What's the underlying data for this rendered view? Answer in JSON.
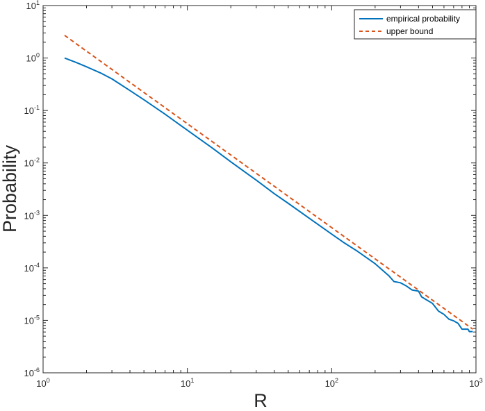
{
  "chart_data": {
    "type": "line",
    "xlabel": "R",
    "ylabel": "Probability",
    "xscale": "log",
    "yscale": "log",
    "xlim": [
      1,
      1000
    ],
    "ylim": [
      1e-06,
      10
    ],
    "x_ticks": [
      {
        "base": "10",
        "exp": "0"
      },
      {
        "base": "10",
        "exp": "1"
      },
      {
        "base": "10",
        "exp": "2"
      },
      {
        "base": "10",
        "exp": "3"
      }
    ],
    "y_ticks": [
      {
        "base": "10",
        "exp": "-6"
      },
      {
        "base": "10",
        "exp": "-5"
      },
      {
        "base": "10",
        "exp": "-4"
      },
      {
        "base": "10",
        "exp": "-3"
      },
      {
        "base": "10",
        "exp": "-2"
      },
      {
        "base": "10",
        "exp": "-1"
      },
      {
        "base": "10",
        "exp": "0"
      },
      {
        "base": "10",
        "exp": "1"
      }
    ],
    "legend_position": "top-right",
    "grid": false,
    "series": [
      {
        "name": "empirical probability",
        "color": "#0072BD",
        "style": "solid",
        "points": [
          [
            1.41,
            1.0
          ],
          [
            1.7,
            0.82
          ],
          [
            2.0,
            0.68
          ],
          [
            2.5,
            0.52
          ],
          [
            3.0,
            0.4
          ],
          [
            4.0,
            0.24
          ],
          [
            5.0,
            0.16
          ],
          [
            7.0,
            0.085
          ],
          [
            10.0,
            0.042
          ],
          [
            15.0,
            0.019
          ],
          [
            20.0,
            0.0105
          ],
          [
            30.0,
            0.0047
          ],
          [
            40.0,
            0.0026
          ],
          [
            50.0,
            0.0017
          ],
          [
            70.0,
            0.00088
          ],
          [
            100.0,
            0.00044
          ],
          [
            120.0,
            0.00031
          ],
          [
            150.0,
            0.00021
          ],
          [
            200.0,
            0.00012
          ],
          [
            250.0,
            7e-05
          ],
          [
            270.0,
            5.5e-05
          ],
          [
            300.0,
            5.2e-05
          ],
          [
            330.0,
            4.5e-05
          ],
          [
            360.0,
            3.8e-05
          ],
          [
            400.0,
            3.6e-05
          ],
          [
            420.0,
            2.8e-05
          ],
          [
            450.0,
            2.5e-05
          ],
          [
            500.0,
            2.1e-05
          ],
          [
            550.0,
            1.5e-05
          ],
          [
            600.0,
            1.3e-05
          ],
          [
            650.0,
            1.05e-05
          ],
          [
            700.0,
            9.8e-06
          ],
          [
            750.0,
            8.8e-06
          ],
          [
            800.0,
            6.8e-06
          ],
          [
            880.0,
            6.8e-06
          ],
          [
            900.0,
            6.1e-06
          ],
          [
            950.0,
            6.1e-06
          ]
        ]
      },
      {
        "name": "upper bound",
        "color": "#D95319",
        "style": "dashed",
        "points": [
          [
            1.41,
            2.7
          ],
          [
            950.0,
            6.8e-06
          ]
        ]
      }
    ]
  }
}
